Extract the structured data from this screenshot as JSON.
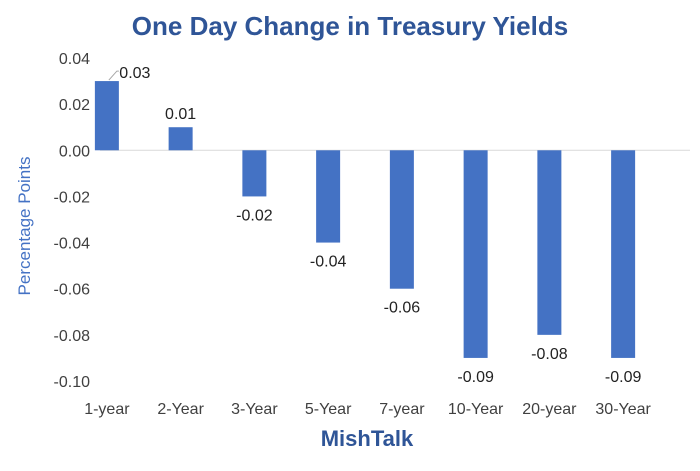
{
  "chart_data": {
    "type": "bar",
    "title": "One Day Change in Treasury Yields",
    "xlabel": "MishTalk",
    "ylabel": "Percentage Points",
    "categories": [
      "1-year",
      "2-Year",
      "3-Year",
      "5-Year",
      "7-year",
      "10-Year",
      "20-year",
      "30-Year"
    ],
    "values": [
      0.03,
      0.01,
      -0.02,
      -0.04,
      -0.06,
      -0.09,
      -0.08,
      -0.09
    ],
    "data_labels": [
      "0.03",
      "0.01",
      "-0.02",
      "-0.04",
      "-0.06",
      "-0.09",
      "-0.08",
      "-0.09"
    ],
    "ylim": [
      -0.1,
      0.04
    ],
    "yticks": [
      0.04,
      0.02,
      0.0,
      -0.02,
      -0.04,
      -0.06,
      -0.08,
      -0.1
    ],
    "ytick_labels": [
      "0.04",
      "0.02",
      "0.00",
      "-0.02",
      "-0.04",
      "-0.06",
      "-0.08",
      "-0.10"
    ],
    "grid": false,
    "legend": "none",
    "colors": {
      "bar": "#4472C4",
      "title": "#2F5597",
      "axis_label": "#4472C4",
      "leader_line": "#A6A6A6"
    }
  }
}
